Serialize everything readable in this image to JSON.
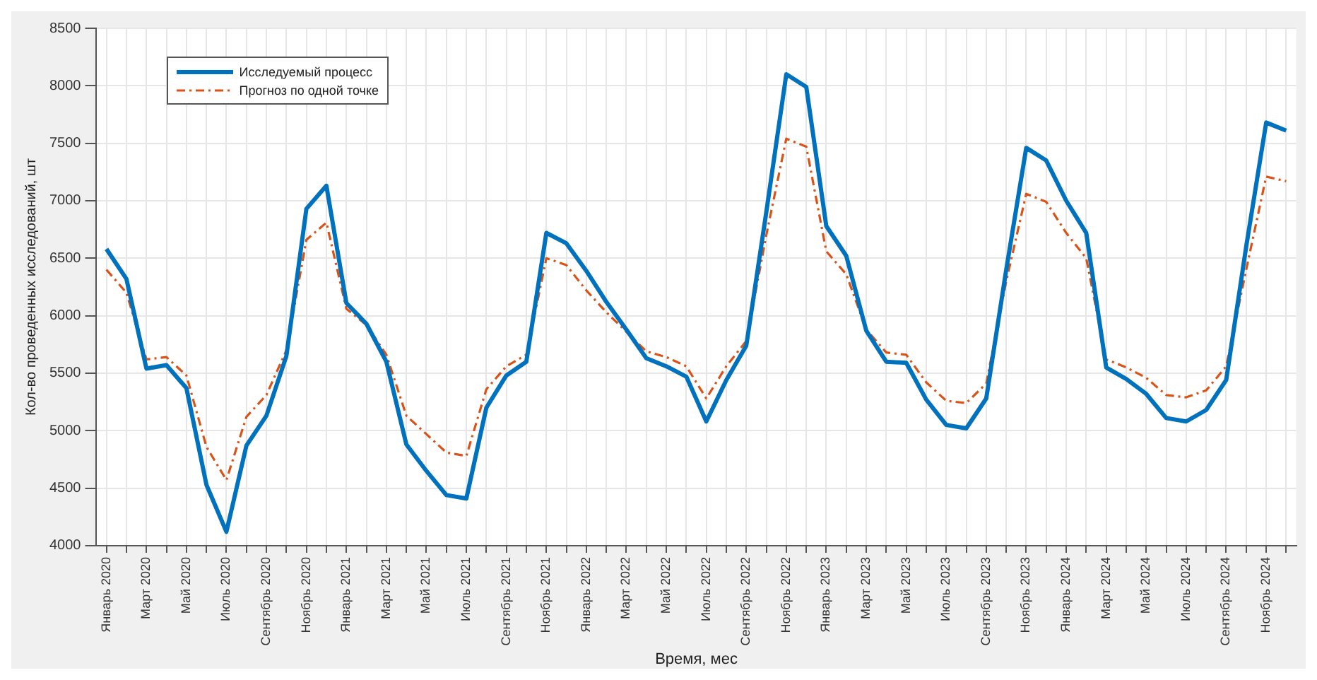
{
  "chart_data": {
    "type": "line",
    "xlabel": "Время, мес",
    "ylabel": "Кол-во проведенных исследований, шт",
    "categories": [
      "Январь 2020",
      null,
      "Март 2020",
      null,
      "Май 2020",
      null,
      "Июль 2020",
      null,
      "Сентябрь 2020",
      null,
      "Ноябрь 2020",
      null,
      "Январь 2021",
      null,
      "Март 2021",
      null,
      "Май 2021",
      null,
      "Июль 2021",
      null,
      "Сентябрь 2021",
      null,
      "Ноябрь 2021",
      null,
      "Январь 2022",
      null,
      "Март 2022",
      null,
      "Май 2022",
      null,
      "Июль 2022",
      null,
      "Сентябрь 2022",
      null,
      "Ноябрь 2022",
      null,
      "Январь 2023",
      null,
      "Март 2023",
      null,
      "Май 2023",
      null,
      "Июль 2023",
      null,
      "Сентябрь 2023",
      null,
      "Ноябрь 2023",
      null,
      "Январь 2024",
      null,
      "Март 2024",
      null,
      "Май 2024",
      null,
      "Июль 2024",
      null,
      "Сентябрь 2024",
      null,
      "Ноябрь 2024",
      null
    ],
    "series": [
      {
        "name": "Исследуемый процесс",
        "color": "#0072bd",
        "line_style": "solid",
        "values": [
          6580,
          6320,
          5540,
          5570,
          5370,
          4530,
          4120,
          4870,
          5130,
          5650,
          6930,
          7130,
          6110,
          5930,
          5600,
          4880,
          4650,
          4440,
          4410,
          5200,
          5480,
          5600,
          6720,
          6630,
          6390,
          6120,
          5880,
          5630,
          5560,
          5470,
          5080,
          5440,
          5740,
          6900,
          8100,
          7990,
          6780,
          6520,
          5870,
          5600,
          5590,
          5270,
          5050,
          5020,
          5280,
          6400,
          7460,
          7350,
          7000,
          6720,
          5550,
          5450,
          5320,
          5110,
          5080,
          5180,
          5440,
          6600,
          7680,
          7610
        ]
      },
      {
        "name": "Прогноз по одной точке",
        "color": "#d95319",
        "line_style": "dashed",
        "values": [
          6400,
          6200,
          5620,
          5640,
          5480,
          4860,
          4570,
          5120,
          5310,
          5700,
          6660,
          6810,
          6060,
          5920,
          5660,
          5130,
          4970,
          4810,
          4780,
          5360,
          5560,
          5660,
          6500,
          6440,
          6220,
          6030,
          5860,
          5690,
          5640,
          5560,
          5280,
          5560,
          5780,
          6700,
          7540,
          7470,
          6560,
          6360,
          5880,
          5680,
          5660,
          5420,
          5260,
          5240,
          5410,
          6300,
          7060,
          6990,
          6720,
          6500,
          5620,
          5550,
          5460,
          5310,
          5290,
          5350,
          5560,
          6400,
          7210,
          7170
        ]
      }
    ],
    "ylim": [
      4000,
      8500
    ],
    "yticks": [
      4000,
      4500,
      5000,
      5500,
      6000,
      6500,
      7000,
      7500,
      8000,
      8500
    ],
    "grid": true,
    "legend": "top left",
    "marker": "none"
  }
}
